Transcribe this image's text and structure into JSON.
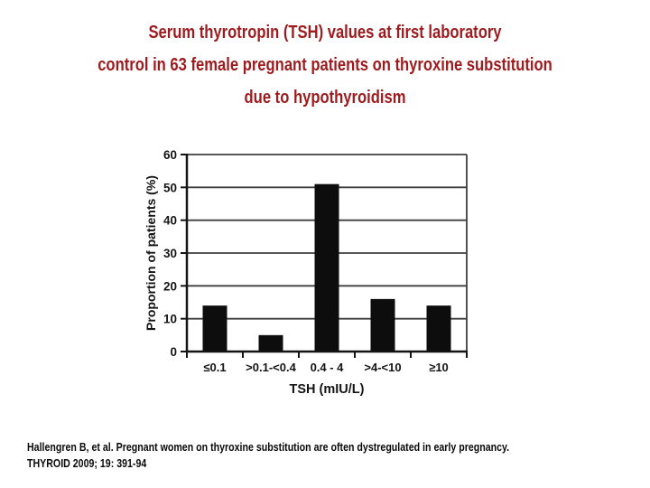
{
  "slide": {
    "title": {
      "lines": [
        "Serum thyrotropin (TSH) values at first laboratory",
        "control in 63 female pregnant patients on thyroxine substitution",
        "due to hypothyroidism"
      ],
      "color": "#9e1a1d"
    },
    "citation": {
      "line1": "Hallengren B, et al. Pregnant women on thyroxine substitution are often dystregulated in early pregnancy.",
      "line2": "THYROID 2009; 19: 391-94"
    }
  },
  "chart_data": {
    "type": "bar",
    "title": "",
    "categories": [
      "≤0.1",
      ">0.1-<0.4",
      "0.4 - 4",
      ">4-<10",
      "≥10"
    ],
    "values": [
      14,
      5,
      51,
      16,
      14
    ],
    "xlabel": "TSH (mIU/L)",
    "ylabel": "Proportion of patients (%)",
    "ylim": [
      0,
      60
    ],
    "ytick_step": 10,
    "yticks": [
      0,
      10,
      20,
      30,
      40,
      50,
      60
    ],
    "grid": true,
    "legend": "none",
    "bar_color": "#0d0d0d",
    "axis_color": "#141414",
    "grid_color": "#3f3f3f"
  }
}
